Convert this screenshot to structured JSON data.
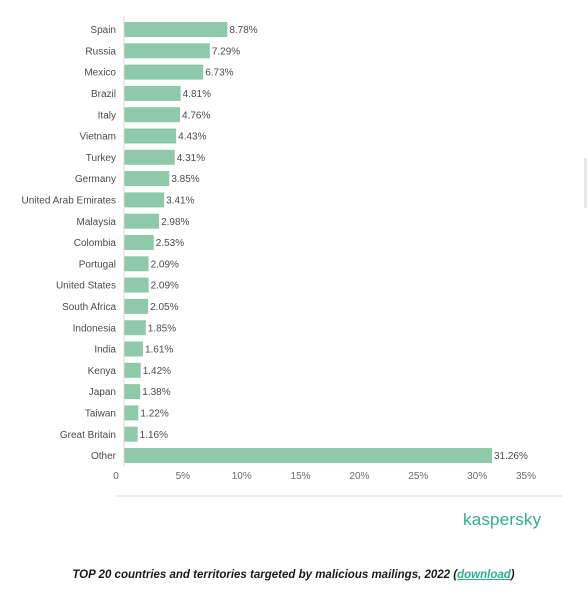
{
  "colors": {
    "bar": "#8ecaa9",
    "axis": "#d9d9d9",
    "brand": "#2fae8e",
    "link": "#2fae8e"
  },
  "chart_data": {
    "type": "bar",
    "orientation": "horizontal",
    "categories": [
      "Spain",
      "Russia",
      "Mexico",
      "Brazil",
      "Italy",
      "Vietnam",
      "Turkey",
      "Germany",
      "United Arab Emirates",
      "Malaysia",
      "Colombia",
      "Portugal",
      "United States",
      "South Africa",
      "Indonesia",
      "India",
      "Kenya",
      "Japan",
      "Taiwan",
      "Great Britain",
      "Other"
    ],
    "values": [
      8.78,
      7.29,
      6.73,
      4.81,
      4.76,
      4.43,
      4.31,
      3.85,
      3.41,
      2.98,
      2.53,
      2.09,
      2.09,
      2.05,
      1.85,
      1.61,
      1.42,
      1.38,
      1.22,
      1.16,
      31.26
    ],
    "value_labels": [
      "8.78%",
      "7.29%",
      "6.73%",
      "4.81%",
      "4.76%",
      "4.43%",
      "4.31%",
      "3.85%",
      "3.41%",
      "2.98%",
      "2.53%",
      "2.09%",
      "2.09%",
      "2.05%",
      "1.85%",
      "1.61%",
      "1.42%",
      "1.38%",
      "1.22%",
      "1.16%",
      "31.26%"
    ],
    "xlim": [
      0,
      35
    ],
    "xticks": [
      0,
      5,
      10,
      15,
      20,
      25,
      30,
      35
    ],
    "xtick_labels": [
      "0",
      "5%",
      "10%",
      "15%",
      "20%",
      "25%",
      "30%",
      "35%"
    ],
    "grid": false,
    "legend": "none"
  },
  "brand": {
    "logo_text": "kaspersky"
  },
  "caption": {
    "text": "TOP 20 countries and territories targeted by malicious mailings, 2022 (",
    "link_label": "download",
    "close": ")"
  }
}
